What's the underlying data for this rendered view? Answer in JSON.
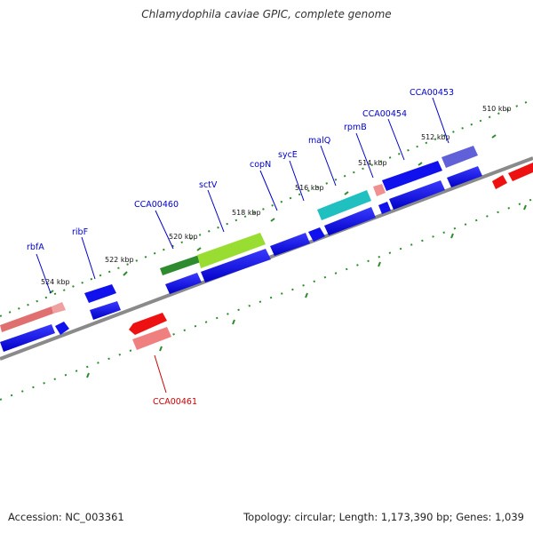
{
  "title": "Chlamydophila caviae GPIC, complete genome",
  "footer": {
    "accession": "Accession: NC_003361",
    "summary": "Topology: circular; Length: 1,173,390 bp; Genes: 1,039"
  },
  "colors": {
    "backbone": "#8a8a8a",
    "ruler_dots": "#2e8b2e",
    "forward_gene": "#1111ee",
    "reverse_gene": "#ee1111",
    "label_forward": "#0000cc",
    "label_reverse": "#cc0000"
  },
  "ruler_labels": [
    "524 kbp",
    "522 kbp",
    "520 kbp",
    "518 kbp",
    "516 kbp",
    "514 kbp",
    "512 kbp",
    "510 kbp"
  ],
  "gene_labels": [
    {
      "name": "rbfA",
      "strand": "forward"
    },
    {
      "name": "ribF",
      "strand": "forward"
    },
    {
      "name": "CCA00460",
      "strand": "forward"
    },
    {
      "name": "sctV",
      "strand": "forward"
    },
    {
      "name": "copN",
      "strand": "forward"
    },
    {
      "name": "sycE",
      "strand": "forward"
    },
    {
      "name": "malQ",
      "strand": "forward"
    },
    {
      "name": "rpmB",
      "strand": "forward"
    },
    {
      "name": "CCA00454",
      "strand": "forward"
    },
    {
      "name": "CCA00453",
      "strand": "forward"
    },
    {
      "name": "CCA00461",
      "strand": "reverse"
    }
  ]
}
